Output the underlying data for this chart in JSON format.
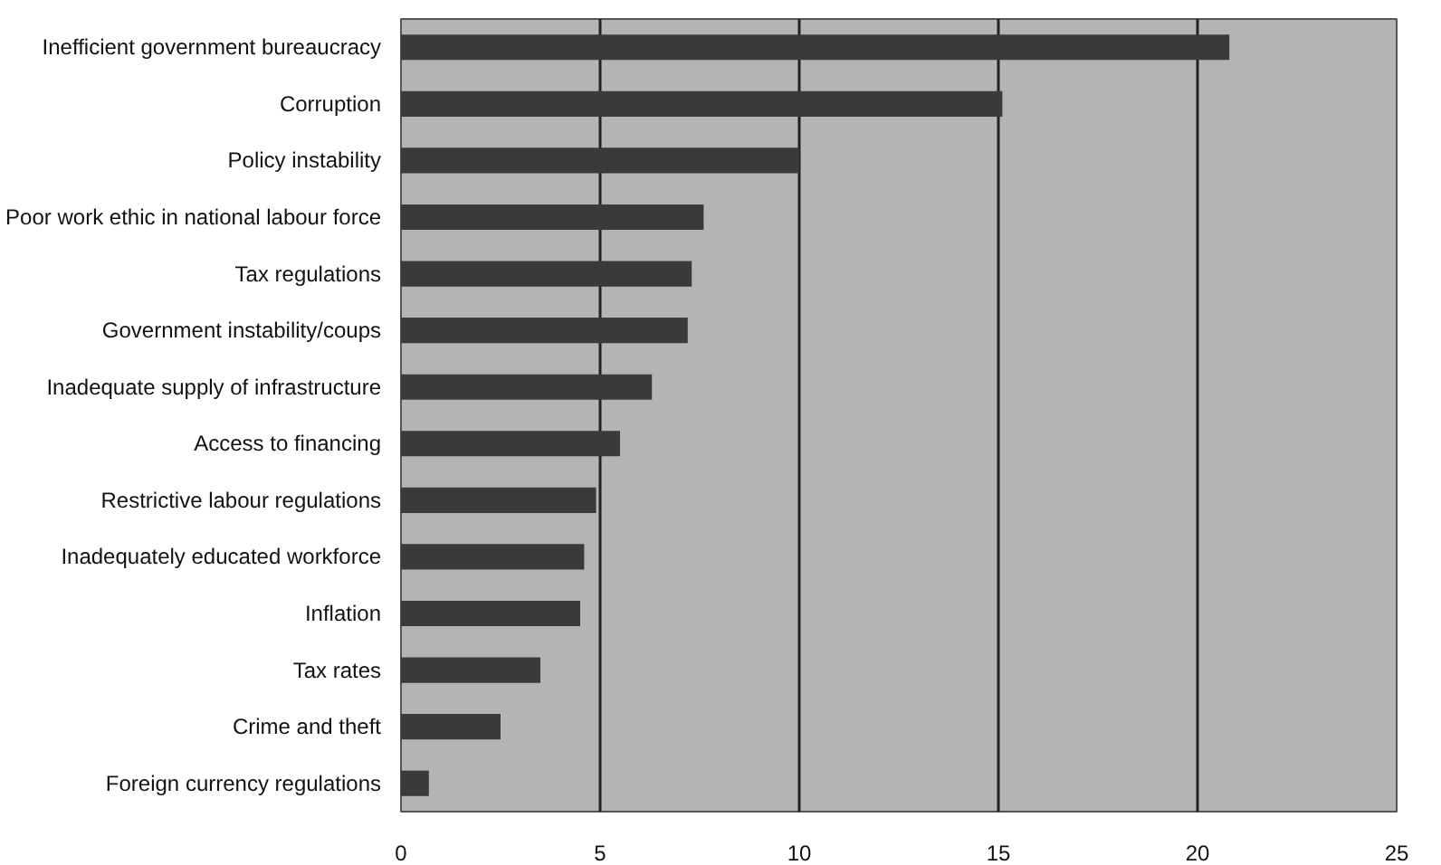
{
  "chart_data": {
    "type": "bar",
    "orientation": "horizontal",
    "categories": [
      "Inefficient government bureaucracy",
      "Corruption",
      "Policy instability",
      "Poor work ethic in national labour force",
      "Tax regulations",
      "Government instability/coups",
      "Inadequate supply of infrastructure",
      "Access to financing",
      "Restrictive labour regulations",
      "Inadequately educated workforce",
      "Inflation",
      "Tax rates",
      "Crime and theft",
      "Foreign currency regulations"
    ],
    "values": [
      20.8,
      15.1,
      10.0,
      7.6,
      7.3,
      7.2,
      6.3,
      5.5,
      4.9,
      4.6,
      4.5,
      3.5,
      2.5,
      0.7
    ],
    "color": "#3a3a3a",
    "xlim": [
      0,
      25
    ],
    "xticks": [
      0,
      5,
      10,
      15,
      20,
      25
    ],
    "grid": "x"
  }
}
